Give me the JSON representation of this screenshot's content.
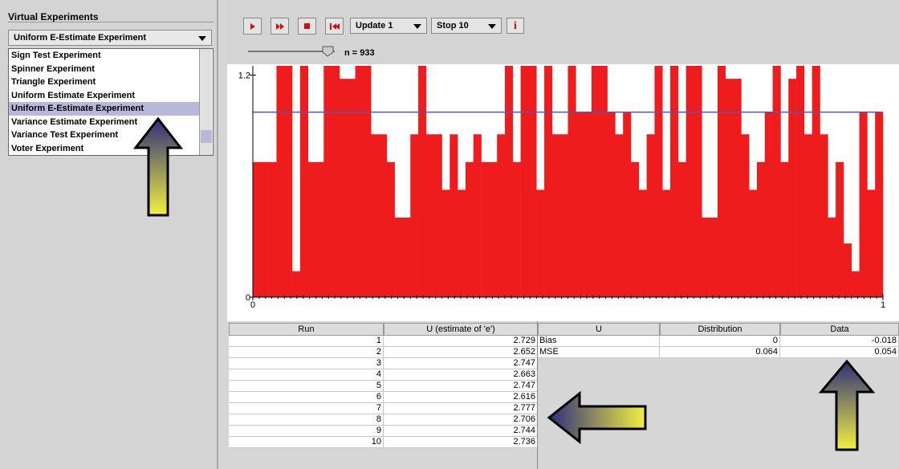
{
  "sidebar": {
    "title": "Virtual Experiments",
    "selected": "Uniform E-Estimate Experiment",
    "items": [
      "Sign Test Experiment",
      "Spinner Experiment",
      "Triangle Experiment",
      "Uniform Estimate Experiment",
      "Uniform E-Estimate Experiment",
      "Variance Estimate Experiment",
      "Variance Test Experiment",
      "Voter Experiment"
    ],
    "highlighted": 4
  },
  "toolbar": {
    "update": "Update 1",
    "stop": "Stop 10",
    "info": "i",
    "n_label": "n = 933"
  },
  "chart_data": {
    "type": "histogram",
    "color": "#ee1c1c",
    "reference_color": "#5555bb",
    "reference": 1,
    "bins": [
      0,
      0.0125,
      0.025,
      0.0375,
      0.05,
      0.0625,
      0.075,
      0.0875,
      0.1,
      0.1125,
      0.125,
      0.1375,
      0.15,
      0.1625,
      0.175,
      0.1875,
      0.2,
      0.2125,
      0.225,
      0.2375,
      0.25,
      0.2625,
      0.275,
      0.2875,
      0.3,
      0.3125,
      0.325,
      0.3375,
      0.35,
      0.3625,
      0.375,
      0.3875,
      0.4,
      0.4125,
      0.425,
      0.4375,
      0.45,
      0.4625,
      0.475,
      0.4875,
      0.5,
      0.5125,
      0.525,
      0.5375,
      0.55,
      0.5625,
      0.575,
      0.5875,
      0.6,
      0.6125,
      0.625,
      0.6375,
      0.65,
      0.6625,
      0.675,
      0.6875,
      0.7,
      0.7125,
      0.725,
      0.7375,
      0.75,
      0.7625,
      0.775,
      0.7875,
      0.8,
      0.8125,
      0.825,
      0.8375,
      0.85,
      0.8625,
      0.875,
      0.8875,
      0.9,
      0.9125,
      0.925,
      0.9375,
      0.95,
      0.9625,
      0.975,
      0.9875,
      1
    ],
    "values": [
      0.73,
      0.73,
      0.73,
      1.25,
      1.25,
      0.14,
      1.25,
      0.73,
      0.73,
      1.25,
      1.25,
      1.18,
      1.18,
      1.25,
      1.25,
      0.88,
      0.88,
      0.73,
      0.43,
      0.43,
      0.88,
      1.25,
      0.88,
      0.88,
      0.58,
      0.88,
      0.58,
      0.73,
      0.88,
      0.73,
      0.73,
      0.88,
      1.25,
      0.73,
      1.25,
      1.25,
      0.58,
      1.25,
      0.88,
      0.88,
      1.25,
      1.0,
      1.0,
      1.25,
      1.25,
      1.0,
      0.88,
      1.0,
      0.73,
      0.58,
      0.88,
      1.25,
      0.58,
      1.25,
      0.73,
      1.25,
      1.25,
      0.43,
      0.43,
      1.25,
      1.18,
      1.18,
      0.88,
      0.58,
      0.73,
      1.0,
      1.25,
      0.73,
      1.18,
      1.25,
      0.88,
      1.25,
      0.88,
      0.43,
      0.73,
      0.29,
      0.14,
      1.0,
      0.58,
      1.0
    ],
    "xlim": [
      0,
      1
    ],
    "xticks": [
      0,
      1
    ],
    "ylim": [
      0,
      1.25
    ],
    "yticks": [
      0,
      1.2
    ]
  },
  "run_table": {
    "columns": [
      "Run",
      "U (estimate of 'e')"
    ],
    "rows": [
      [
        1,
        2.729
      ],
      [
        2,
        2.652
      ],
      [
        3,
        2.747
      ],
      [
        4,
        2.663
      ],
      [
        5,
        2.747
      ],
      [
        6,
        2.616
      ],
      [
        7,
        2.777
      ],
      [
        8,
        2.706
      ],
      [
        9,
        2.744
      ],
      [
        10,
        2.736
      ]
    ]
  },
  "stats_table": {
    "columns": [
      "U",
      "Distribution",
      "Data"
    ],
    "rows": [
      [
        "Bias",
        0,
        -0.018
      ],
      [
        "MSE",
        0.064,
        0.054
      ]
    ]
  }
}
